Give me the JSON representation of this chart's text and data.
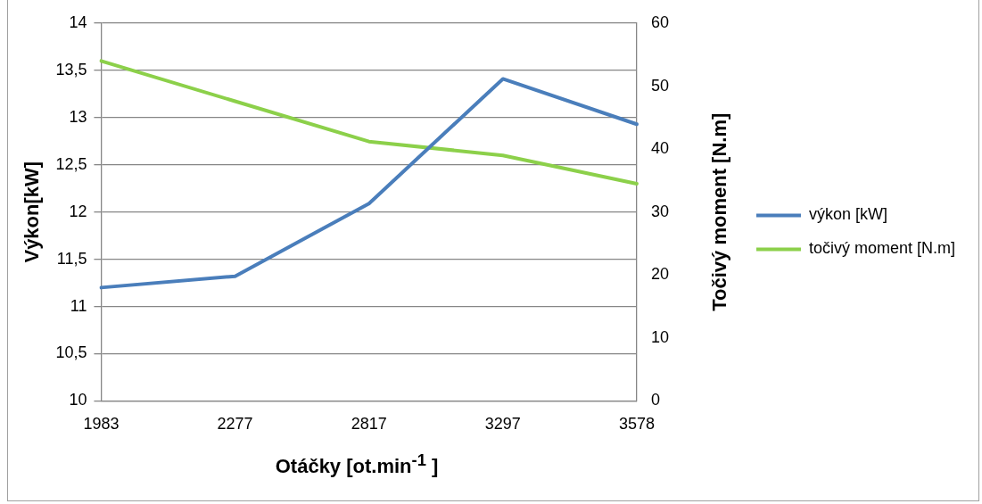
{
  "chart_data": {
    "type": "line",
    "xlabel": "Otáčky [ot.min$^{-1}$ ]",
    "ylabel": "Výkon[kW]",
    "y2label": "Točivý moment [N.m]",
    "categories": [
      "1983",
      "2277",
      "2817",
      "3297",
      "3578"
    ],
    "series": [
      {
        "name": "výkon [kW]",
        "color": "#4a7ebb",
        "values": [
          11.2,
          11.32,
          12.09,
          13.41,
          12.93
        ]
      },
      {
        "name": "točivý moment [N.m]",
        "color": "#8cd04a",
        "values": [
          54,
          47.6,
          41.2,
          39,
          34.5
        ],
        "axis": "y2"
      }
    ],
    "ylim": [
      10,
      14
    ],
    "yticks": [
      10,
      {
        "value": 10.5,
        "label": "10,5"
      },
      11,
      {
        "value": 11.5,
        "label": "11,5"
      },
      12,
      {
        "value": 12.5,
        "label": "12,5"
      },
      13,
      {
        "value": 13.5,
        "label": "13,5"
      },
      14
    ],
    "y2lim": [
      0,
      60
    ],
    "y2ticks": [
      0,
      10,
      20,
      30,
      40,
      50,
      60
    ],
    "grid": "y",
    "legend": "right",
    "marker": "none",
    "line_style": "solid"
  }
}
